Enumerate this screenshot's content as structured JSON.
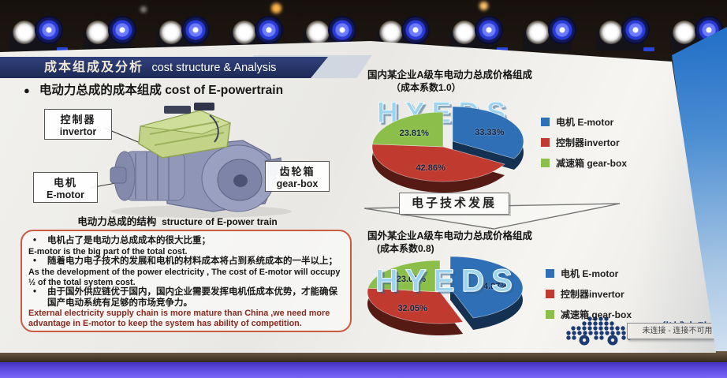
{
  "slide": {
    "banner": {
      "zh": "成本组成及分析",
      "en": "cost structure & Analysis"
    },
    "bullet": {
      "zh": "电动力总成的成本组成",
      "en": "cost of E-powertrain"
    },
    "figure": {
      "labels": {
        "invertor": {
          "zh": "控制器",
          "en": "invertor"
        },
        "motor": {
          "zh": "电机",
          "en": "E-motor"
        },
        "gearbox": {
          "zh": "齿轮箱",
          "en": "gear-box"
        }
      },
      "caption": {
        "zh": "电动力总成的结构",
        "en": "structure of E-power train"
      }
    },
    "notes": {
      "lines": [
        {
          "lang": "zh",
          "bullet": true,
          "text": "电机占了是电动力总成成本的很大比重；"
        },
        {
          "lang": "en",
          "bullet": false,
          "text": "E-motor is the big part of the total cost."
        },
        {
          "lang": "zh",
          "bullet": true,
          "text": "随着电力电子技术的发展和电机的材料成本将占到系统成本的一半以上；"
        },
        {
          "lang": "en",
          "bullet": false,
          "text": "As the development  of the power electricity , The cost of  E-motor will occupy ½  of the total system cost."
        },
        {
          "lang": "zh",
          "bullet": true,
          "text": "由于国外供应链优于国内，国内企业需要发挥电机低成本优势，才能确保国产电动系统有足够的市场竞争力。"
        },
        {
          "lang": "en",
          "bullet": false,
          "color": "#8a2a1e",
          "text": "External  electricity supply chain is more  mature than China ,we need more advantage in E-motor to keep the system has ability of competition."
        }
      ]
    },
    "arrow_label": "电子技术发展",
    "logo": {
      "company": "华域电动",
      "tooltip": "未连接 - 连接不可用"
    }
  },
  "chart_data": [
    {
      "type": "pie",
      "title": "国内某企业A级车电动力总成价格组成",
      "subtitle": "（成本系数1.0）",
      "watermark": "HYEDS",
      "legend_position": "right",
      "slices": [
        {
          "label": "电机 E-motor",
          "value": 33.33,
          "color": "#2f6fb5",
          "exploded": true
        },
        {
          "label": "控制器invertor",
          "value": 42.86,
          "color": "#c03a30",
          "exploded": false
        },
        {
          "label": "减速箱 gear-box",
          "value": 23.81,
          "color": "#8cbf4a",
          "exploded": false
        }
      ]
    },
    {
      "type": "pie",
      "title": "国外某企业A级车电动力总成价格组成",
      "subtitle": "(成本系数0.8)",
      "watermark": "HYEDS",
      "legend_position": "right",
      "slices": [
        {
          "label": "电机 E-motor",
          "value": 44.87,
          "color": "#2f6fb5",
          "exploded": true
        },
        {
          "label": "控制器invertor",
          "value": 32.05,
          "color": "#c03a30",
          "exploded": false
        },
        {
          "label": "减速箱 gear-box",
          "value": 23.08,
          "color": "#8cbf4a",
          "exploded": false
        }
      ]
    }
  ]
}
